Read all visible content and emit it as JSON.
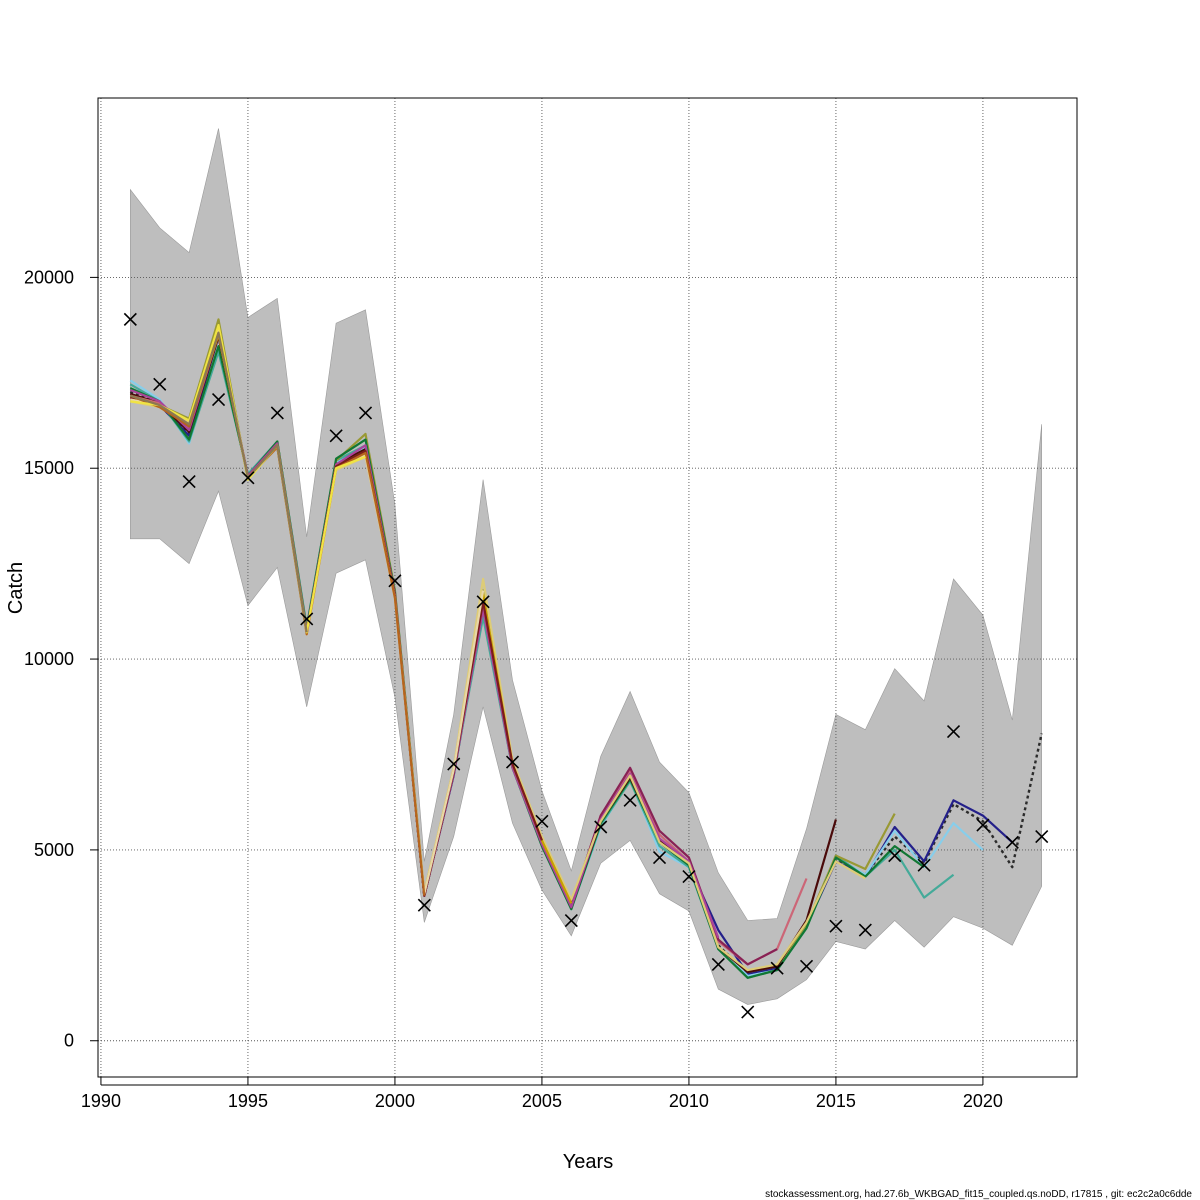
{
  "chart_data": {
    "type": "line",
    "title": "",
    "xlabel": "Years",
    "ylabel": "Catch",
    "xlim": [
      1989.9,
      2023.2
    ],
    "ylim": [
      -950,
      24700
    ],
    "x_ticks": [
      1990,
      1995,
      2000,
      2005,
      2010,
      2015,
      2020
    ],
    "y_ticks": [
      0,
      5000,
      10000,
      15000,
      20000
    ],
    "grid": true,
    "confidence_band": {
      "color": "#bebebe",
      "years": [
        1991,
        1992,
        1993,
        1994,
        1995,
        1996,
        1997,
        1998,
        1999,
        2000,
        2001,
        2002,
        2003,
        2004,
        2005,
        2006,
        2007,
        2008,
        2009,
        2010,
        2011,
        2012,
        2013,
        2014,
        2015,
        2016,
        2017,
        2018,
        2019,
        2020,
        2021,
        2022
      ],
      "upper": [
        22300,
        21300,
        20650,
        23900,
        18950,
        19450,
        13200,
        18800,
        19150,
        14050,
        4700,
        8550,
        14700,
        9450,
        6550,
        4450,
        7450,
        9150,
        7300,
        6500,
        4400,
        3150,
        3200,
        5550,
        8550,
        8150,
        9750,
        8900,
        12100,
        11150,
        8400,
        16150
      ],
      "lower": [
        13150,
        13150,
        12500,
        14400,
        11400,
        12400,
        8750,
        12250,
        12600,
        9000,
        3100,
        5350,
        8750,
        5700,
        3950,
        2750,
        4650,
        5250,
        3850,
        3400,
        1350,
        950,
        1100,
        1600,
        2600,
        2400,
        3150,
        2450,
        3250,
        2950,
        2500,
        4050
      ]
    },
    "observed": {
      "marker": "x",
      "years": [
        1991,
        1992,
        1993,
        1994,
        1995,
        1996,
        1997,
        1998,
        1999,
        2000,
        2001,
        2002,
        2003,
        2004,
        2005,
        2006,
        2007,
        2008,
        2009,
        2010,
        2011,
        2012,
        2013,
        2014,
        2015,
        2016,
        2017,
        2018,
        2019,
        2020,
        2021,
        2022
      ],
      "values": [
        18900,
        17200,
        14650,
        16800,
        14750,
        16450,
        11050,
        15850,
        16450,
        12050,
        3550,
        7250,
        11500,
        7300,
        5750,
        3150,
        5600,
        6300,
        4800,
        4300,
        2000,
        750,
        1900,
        1950,
        3000,
        2900,
        4850,
        4600,
        8100,
        5650,
        5200,
        5350
      ]
    },
    "series": [
      {
        "color": "#2b2b2b",
        "dashed": true,
        "years": [
          1991,
          1992,
          1993,
          1994,
          1995,
          1996,
          1997,
          1998,
          1999,
          2000,
          2001,
          2002,
          2003,
          2004,
          2005,
          2006,
          2007,
          2008,
          2009,
          2010,
          2011,
          2012,
          2013,
          2014,
          2015,
          2016,
          2017,
          2018,
          2019,
          2020,
          2021,
          2022
        ],
        "values": [
          17000,
          16700,
          15900,
          18500,
          14800,
          15600,
          10750,
          15100,
          15500,
          11700,
          3800,
          7000,
          11350,
          7200,
          5200,
          3500,
          5850,
          6950,
          5250,
          4650,
          2500,
          1750,
          1950,
          3050,
          4750,
          4350,
          5350,
          4650,
          6200,
          5750,
          4550,
          8050
        ]
      },
      {
        "color": "#24208a",
        "years": [
          1991,
          1992,
          1993,
          1994,
          1995,
          1996,
          1997,
          1998,
          1999,
          2000,
          2001,
          2002,
          2003,
          2004,
          2005,
          2006,
          2007,
          2008,
          2009,
          2010,
          2011,
          2012,
          2013,
          2014,
          2015,
          2016,
          2017,
          2018,
          2019,
          2020,
          2021
        ],
        "values": [
          16950,
          16650,
          15850,
          18450,
          14750,
          15550,
          10700,
          15050,
          15450,
          11650,
          3800,
          6950,
          11300,
          7150,
          5200,
          3500,
          5800,
          6900,
          5200,
          4600,
          2900,
          1750,
          1900,
          3000,
          4700,
          4300,
          5600,
          4700,
          6300,
          5900,
          5200
        ]
      },
      {
        "color": "#87ceeb",
        "years": [
          1991,
          1992,
          1993,
          1994,
          1995,
          1996,
          1997,
          1998,
          1999,
          2000,
          2001,
          2002,
          2003,
          2004,
          2005,
          2006,
          2007,
          2008,
          2009,
          2010,
          2011,
          2012,
          2013,
          2014,
          2015,
          2016,
          2017,
          2018,
          2019,
          2020
        ],
        "values": [
          17300,
          16800,
          15650,
          18200,
          14850,
          15650,
          10800,
          15150,
          15550,
          11750,
          3850,
          7050,
          11200,
          7200,
          5100,
          3450,
          5600,
          6850,
          4950,
          4550,
          2450,
          1700,
          1850,
          3000,
          4800,
          4350,
          5500,
          4550,
          5700,
          5000
        ]
      },
      {
        "color": "#44aa99",
        "years": [
          1991,
          1992,
          1993,
          1994,
          1995,
          1996,
          1997,
          1998,
          1999,
          2000,
          2001,
          2002,
          2003,
          2004,
          2005,
          2006,
          2007,
          2008,
          2009,
          2010,
          2011,
          2012,
          2013,
          2014,
          2015,
          2016,
          2017,
          2018,
          2019
        ],
        "values": [
          17200,
          16750,
          15700,
          18050,
          14850,
          15700,
          10850,
          15200,
          15600,
          11800,
          3850,
          7000,
          11100,
          7150,
          5100,
          3450,
          5650,
          6800,
          5100,
          4550,
          2400,
          1650,
          1850,
          2950,
          4850,
          4300,
          5000,
          3750,
          4350
        ]
      },
      {
        "color": "#999933",
        "years": [
          1991,
          1992,
          1993,
          1994,
          1995,
          1996,
          1997,
          1998,
          1999,
          2000,
          2001,
          2002,
          2003,
          2004,
          2005,
          2006,
          2007,
          2008,
          2009,
          2010,
          2011,
          2012,
          2013,
          2014,
          2015,
          2016,
          2017
        ],
        "values": [
          16800,
          16650,
          16300,
          18900,
          14700,
          15700,
          10750,
          15200,
          15900,
          11800,
          3850,
          7050,
          11800,
          7250,
          5150,
          3550,
          5700,
          6950,
          5250,
          4700,
          2450,
          1800,
          1950,
          3050,
          4850,
          4500,
          5950
        ]
      },
      {
        "color": "#117733",
        "years": [
          1991,
          1992,
          1993,
          1994,
          1995,
          1996,
          1997,
          1998,
          1999,
          2000,
          2001,
          2002,
          2003,
          2004,
          2005,
          2006,
          2007,
          2008,
          2009,
          2010,
          2011,
          2012,
          2013,
          2014,
          2015,
          2016,
          2017,
          2018
        ],
        "values": [
          17100,
          16750,
          15750,
          18200,
          14800,
          15700,
          10800,
          15250,
          15750,
          11750,
          3800,
          7000,
          11350,
          7150,
          5100,
          3450,
          5700,
          6850,
          5200,
          4600,
          2400,
          1650,
          1850,
          2950,
          4800,
          4300,
          5100,
          4550
        ]
      },
      {
        "color": "#4a0a0a",
        "years": [
          1991,
          1992,
          1993,
          1994,
          1995,
          1996,
          1997,
          1998,
          1999,
          2000,
          2001,
          2002,
          2003,
          2004,
          2005,
          2006,
          2007,
          2008,
          2009,
          2010,
          2011,
          2012,
          2013,
          2014,
          2015
        ],
        "values": [
          16950,
          16700,
          15950,
          18450,
          14800,
          15600,
          10700,
          15100,
          15500,
          11700,
          3800,
          7000,
          11350,
          7200,
          5150,
          3500,
          5750,
          6900,
          5250,
          4650,
          2450,
          1800,
          1950,
          3150,
          5800
        ]
      },
      {
        "color": "#cc6677",
        "years": [
          1991,
          1992,
          1993,
          1994,
          1995,
          1996,
          1997,
          1998,
          1999,
          2000,
          2001,
          2002,
          2003,
          2004,
          2005,
          2006,
          2007,
          2008,
          2009,
          2010,
          2011,
          2012,
          2013,
          2014
        ],
        "values": [
          16900,
          16700,
          16050,
          18550,
          14750,
          15600,
          10700,
          15050,
          15400,
          11650,
          3800,
          7000,
          11350,
          7200,
          5200,
          3550,
          5900,
          7100,
          5400,
          4700,
          2600,
          2000,
          2400,
          4250
        ]
      },
      {
        "color": "#882255",
        "years": [
          1991,
          1992,
          1993,
          1994,
          1995,
          1996,
          1997,
          1998,
          1999,
          2000,
          2001,
          2002,
          2003,
          2004,
          2005,
          2006,
          2007,
          2008,
          2009,
          2010,
          2011,
          2012,
          2013
        ],
        "values": [
          16850,
          16650,
          16150,
          18600,
          14750,
          15600,
          10700,
          15050,
          15350,
          11650,
          3800,
          7000,
          11350,
          7200,
          5250,
          3550,
          5900,
          7150,
          5500,
          4800,
          2650,
          2000,
          2400
        ]
      },
      {
        "color": "#aa4499",
        "years": [
          1991,
          1992,
          1993,
          1994,
          1995,
          1996,
          1997,
          1998,
          1999,
          2000,
          2001,
          2002,
          2003,
          2004,
          2005,
          2006,
          2007,
          2008,
          2009,
          2010,
          2011
        ],
        "values": [
          17050,
          16750,
          16000,
          18500,
          14800,
          15650,
          10750,
          15100,
          15600,
          11700,
          3800,
          7000,
          11300,
          7150,
          5150,
          3500,
          5800,
          7000,
          5300,
          4700,
          2700
        ]
      },
      {
        "color": "#ddcc77",
        "years": [
          1991,
          1992,
          1993,
          1994,
          1995,
          1996,
          1997,
          1998,
          1999,
          2000,
          2001,
          2002,
          2003,
          2004,
          2005,
          2006,
          2007,
          2008,
          2009,
          2010,
          2011,
          2012,
          2013,
          2014,
          2015,
          2016
        ],
        "values": [
          16750,
          16600,
          16200,
          18700,
          14700,
          15600,
          10650,
          14950,
          15300,
          11600,
          3900,
          7150,
          12100,
          7350,
          5350,
          3700,
          5750,
          6950,
          5200,
          4650,
          2450,
          1850,
          2000,
          3100,
          4700,
          4250
        ]
      },
      {
        "color": "#c8a000",
        "years": [
          1991,
          1992,
          1993,
          1994,
          1995,
          1996,
          1997,
          1998,
          1999,
          2000,
          2001,
          2002,
          2003,
          2004,
          2005,
          2006
        ],
        "values": [
          16900,
          16650,
          16100,
          18500,
          14750,
          15600,
          10700,
          15050,
          15450,
          11650,
          3850,
          7100,
          11700,
          7250,
          5250,
          3600
        ]
      },
      {
        "color": "#7a1c1c",
        "years": [
          1991,
          1992,
          1993,
          1994,
          1995,
          1996,
          1997,
          1998,
          1999,
          2000,
          2001,
          2002,
          2003,
          2004,
          2005
        ],
        "values": [
          16850,
          16650,
          16100,
          18600,
          14750,
          15600,
          10700,
          15050,
          15450,
          11650,
          3800,
          7050,
          11500,
          7250,
          5250
        ]
      },
      {
        "color": "#e8d7a8",
        "years": [
          1991,
          1992,
          1993,
          1994,
          1995,
          1996,
          1997,
          1998,
          1999,
          2000,
          2001,
          2002,
          2003
        ],
        "values": [
          16800,
          16650,
          16150,
          18650,
          14750,
          15550,
          10650,
          15000,
          15350,
          11600,
          3850,
          7100,
          11800
        ]
      },
      {
        "color": "#b5651d",
        "years": [
          1991,
          1992,
          1993,
          1994,
          1995,
          1996,
          1997,
          1998,
          1999,
          2000,
          2001
        ],
        "values": [
          16900,
          16600,
          16100,
          18550,
          14750,
          15550,
          10650,
          15000,
          15400,
          11600,
          3800
        ]
      },
      {
        "color": "#f0e442",
        "years": [
          1991,
          1992,
          1993,
          1994,
          1995,
          1996,
          1997,
          1998,
          1999
        ],
        "values": [
          16750,
          16650,
          16250,
          18750,
          14700,
          15600,
          10700,
          15000,
          15300
        ]
      },
      {
        "color": "#8c7853",
        "years": [
          1991,
          1992,
          1993,
          1994,
          1995,
          1996,
          1997
        ],
        "values": [
          16900,
          16650,
          16150,
          18550,
          14750,
          15600,
          10700
        ]
      }
    ]
  },
  "footer_text": "stockassessment.org, had.27.6b_WKBGAD_fit15_coupled.qs.noDD, r17815 , git: ec2c2a0c6dde"
}
